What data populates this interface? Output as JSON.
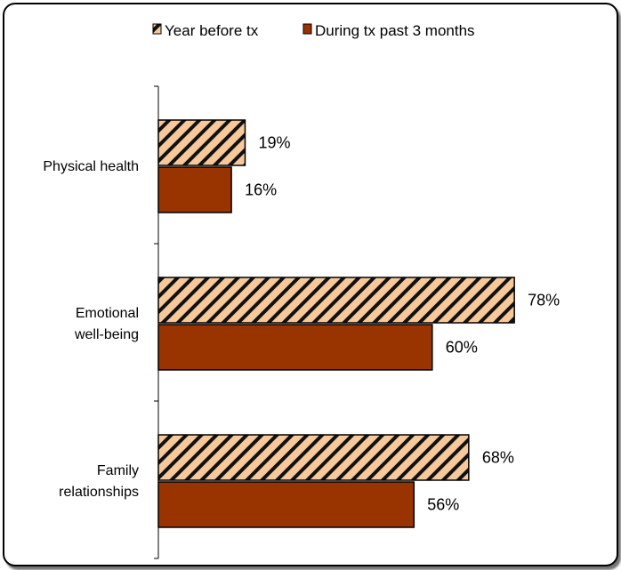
{
  "chart_data": {
    "type": "bar",
    "orientation": "horizontal",
    "categories": [
      [
        "Physical health"
      ],
      [
        "Emotional",
        "well-being"
      ],
      [
        "Family",
        "relationships"
      ]
    ],
    "series": [
      {
        "name": "Year before tx",
        "values": [
          19,
          78,
          68
        ],
        "color": "#f7c89a",
        "pattern": "diagonal-hatch"
      },
      {
        "name": "During tx past 3 months",
        "values": [
          16,
          60,
          56
        ],
        "color": "#993300",
        "pattern": "solid"
      }
    ],
    "value_labels": [
      [
        "19%",
        "78%",
        "68%"
      ],
      [
        "16%",
        "60%",
        "56%"
      ]
    ],
    "title": "",
    "xlabel": "",
    "ylabel": "",
    "xlim": [
      0,
      100
    ],
    "grid": false,
    "legend_position": "top"
  }
}
